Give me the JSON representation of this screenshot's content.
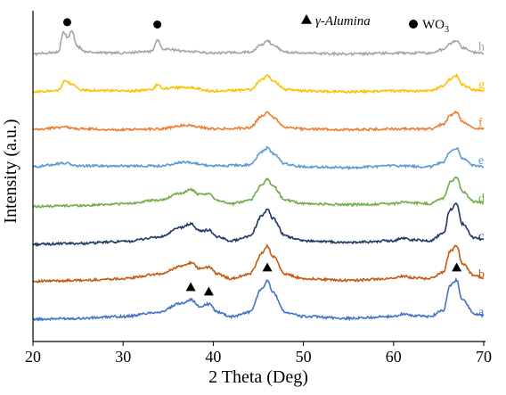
{
  "chart_data": {
    "type": "line",
    "title": "",
    "xlabel": "2 Theta (Deg)",
    "ylabel": "Intensity (a.u.)",
    "xlim": [
      20,
      70
    ],
    "xticks": [
      20,
      30,
      40,
      50,
      60,
      70
    ],
    "legend": {
      "position": "top-right",
      "items": [
        {
          "symbol": "triangle",
          "label": "γ-Alumina"
        },
        {
          "symbol": "circle",
          "label": "WO3"
        }
      ]
    },
    "series": [
      {
        "name": "a",
        "color": "#4472c4",
        "offset": 0,
        "points": [
          [
            20,
            2
          ],
          [
            25,
            3
          ],
          [
            30,
            5
          ],
          [
            34,
            10
          ],
          [
            36.5,
            20
          ],
          [
            37.5,
            24
          ],
          [
            38.5,
            16
          ],
          [
            39.5,
            19
          ],
          [
            40.5,
            10
          ],
          [
            42,
            5
          ],
          [
            44,
            10
          ],
          [
            45.5,
            38
          ],
          [
            46,
            46
          ],
          [
            46.6,
            32
          ],
          [
            48,
            10
          ],
          [
            50,
            5
          ],
          [
            55,
            3
          ],
          [
            60,
            5
          ],
          [
            61,
            8
          ],
          [
            62,
            6
          ],
          [
            64,
            5
          ],
          [
            65.5,
            12
          ],
          [
            66.3,
            40
          ],
          [
            67,
            46
          ],
          [
            67.6,
            24
          ],
          [
            69,
            8
          ],
          [
            70,
            6
          ]
        ]
      },
      {
        "name": "b",
        "color": "#c55a11",
        "offset": 1,
        "points": [
          [
            20,
            2
          ],
          [
            25,
            3
          ],
          [
            30,
            5
          ],
          [
            34,
            10
          ],
          [
            36.5,
            19
          ],
          [
            37.5,
            23
          ],
          [
            38.5,
            16
          ],
          [
            39.5,
            18
          ],
          [
            40.5,
            10
          ],
          [
            42,
            5
          ],
          [
            44,
            10
          ],
          [
            45.5,
            34
          ],
          [
            46,
            42
          ],
          [
            46.6,
            30
          ],
          [
            48,
            10
          ],
          [
            50,
            5
          ],
          [
            55,
            3
          ],
          [
            60,
            5
          ],
          [
            61,
            8
          ],
          [
            62,
            6
          ],
          [
            64,
            5
          ],
          [
            65.5,
            12
          ],
          [
            66.3,
            36
          ],
          [
            67,
            42
          ],
          [
            67.6,
            22
          ],
          [
            69,
            8
          ],
          [
            70,
            6
          ]
        ]
      },
      {
        "name": "c",
        "color": "#1f3864",
        "offset": 2,
        "points": [
          [
            20,
            1
          ],
          [
            25,
            2
          ],
          [
            30,
            4
          ],
          [
            34,
            9
          ],
          [
            36.5,
            20
          ],
          [
            37.5,
            24
          ],
          [
            38.5,
            16
          ],
          [
            39.5,
            17
          ],
          [
            40.5,
            9
          ],
          [
            42,
            5
          ],
          [
            44,
            10
          ],
          [
            45.5,
            34
          ],
          [
            46,
            40
          ],
          [
            46.6,
            30
          ],
          [
            48,
            10
          ],
          [
            50,
            5
          ],
          [
            55,
            3
          ],
          [
            60,
            5
          ],
          [
            61,
            8
          ],
          [
            62,
            6
          ],
          [
            64,
            5
          ],
          [
            65.5,
            13
          ],
          [
            66.3,
            40
          ],
          [
            67,
            46
          ],
          [
            67.6,
            24
          ],
          [
            69,
            8
          ],
          [
            70,
            6
          ]
        ]
      },
      {
        "name": "d",
        "color": "#70ad47",
        "offset": 3,
        "points": [
          [
            20,
            1
          ],
          [
            25,
            2
          ],
          [
            30,
            4
          ],
          [
            34,
            8
          ],
          [
            36.5,
            16
          ],
          [
            37.5,
            20
          ],
          [
            38.5,
            14
          ],
          [
            39.5,
            15
          ],
          [
            40.5,
            8
          ],
          [
            42,
            4
          ],
          [
            44,
            8
          ],
          [
            45.5,
            26
          ],
          [
            46,
            32
          ],
          [
            46.6,
            24
          ],
          [
            48,
            8
          ],
          [
            50,
            4
          ],
          [
            55,
            3
          ],
          [
            60,
            4
          ],
          [
            61,
            6
          ],
          [
            62,
            5
          ],
          [
            64,
            4
          ],
          [
            65.5,
            10
          ],
          [
            66.3,
            28
          ],
          [
            67,
            34
          ],
          [
            67.6,
            18
          ],
          [
            69,
            6
          ],
          [
            70,
            5
          ]
        ]
      },
      {
        "name": "e",
        "color": "#5b9bd5",
        "offset": 4,
        "points": [
          [
            20,
            3
          ],
          [
            23.5,
            7
          ],
          [
            25,
            4
          ],
          [
            30,
            4
          ],
          [
            34,
            4
          ],
          [
            37,
            8
          ],
          [
            40,
            4
          ],
          [
            44,
            5
          ],
          [
            45.5,
            20
          ],
          [
            46,
            24
          ],
          [
            46.6,
            18
          ],
          [
            48,
            6
          ],
          [
            50,
            3
          ],
          [
            55,
            2
          ],
          [
            60,
            4
          ],
          [
            64,
            3
          ],
          [
            65.5,
            8
          ],
          [
            66.3,
            20
          ],
          [
            67,
            24
          ],
          [
            67.6,
            12
          ],
          [
            69,
            4
          ],
          [
            70,
            3
          ]
        ]
      },
      {
        "name": "f",
        "color": "#ed7d31",
        "offset": 5,
        "points": [
          [
            20,
            2
          ],
          [
            23.5,
            5
          ],
          [
            25,
            3
          ],
          [
            30,
            2
          ],
          [
            34,
            3
          ],
          [
            37,
            7
          ],
          [
            40,
            3
          ],
          [
            44,
            4
          ],
          [
            45.5,
            18
          ],
          [
            46,
            22
          ],
          [
            46.6,
            16
          ],
          [
            48,
            5
          ],
          [
            50,
            3
          ],
          [
            55,
            2
          ],
          [
            60,
            3
          ],
          [
            64,
            3
          ],
          [
            65.5,
            8
          ],
          [
            66.3,
            18
          ],
          [
            67,
            22
          ],
          [
            67.6,
            11
          ],
          [
            69,
            4
          ],
          [
            70,
            3
          ]
        ]
      },
      {
        "name": "g",
        "color": "#ffc000",
        "offset": 6,
        "points": [
          [
            20,
            2
          ],
          [
            22.8,
            4
          ],
          [
            23.6,
            14
          ],
          [
            24.4,
            10
          ],
          [
            25.5,
            4
          ],
          [
            30,
            3
          ],
          [
            33.2,
            4
          ],
          [
            33.8,
            10
          ],
          [
            34.4,
            6
          ],
          [
            37,
            7
          ],
          [
            40,
            3
          ],
          [
            44,
            4
          ],
          [
            45.5,
            16
          ],
          [
            46,
            20
          ],
          [
            46.6,
            14
          ],
          [
            48,
            5
          ],
          [
            50,
            3
          ],
          [
            55,
            2
          ],
          [
            60,
            3
          ],
          [
            64,
            3
          ],
          [
            65.5,
            8
          ],
          [
            66.3,
            16
          ],
          [
            67,
            20
          ],
          [
            67.6,
            10
          ],
          [
            69,
            4
          ],
          [
            70,
            3
          ]
        ]
      },
      {
        "name": "h",
        "color": "#a5a5a5",
        "offset": 7,
        "points": [
          [
            20,
            2
          ],
          [
            22.8,
            4
          ],
          [
            23.4,
            26
          ],
          [
            23.9,
            20
          ],
          [
            24.3,
            28
          ],
          [
            24.9,
            10
          ],
          [
            26,
            4
          ],
          [
            30,
            3
          ],
          [
            33.2,
            5
          ],
          [
            33.8,
            18
          ],
          [
            34.4,
            8
          ],
          [
            37,
            5
          ],
          [
            40,
            3
          ],
          [
            44,
            4
          ],
          [
            45.5,
            13
          ],
          [
            46,
            17
          ],
          [
            46.6,
            12
          ],
          [
            48,
            4
          ],
          [
            50,
            3
          ],
          [
            55,
            2
          ],
          [
            60,
            3
          ],
          [
            64,
            3
          ],
          [
            65.5,
            7
          ],
          [
            66.3,
            14
          ],
          [
            67,
            17
          ],
          [
            67.6,
            9
          ],
          [
            69,
            4
          ],
          [
            70,
            3
          ]
        ]
      }
    ],
    "markers": [
      {
        "symbol": "triangle",
        "x": 37.5,
        "series": "a"
      },
      {
        "symbol": "triangle",
        "x": 39.5,
        "series": "a"
      },
      {
        "symbol": "triangle",
        "x": 46.0,
        "series": "a"
      },
      {
        "symbol": "triangle",
        "x": 67.0,
        "series": "a"
      },
      {
        "symbol": "circle",
        "x": 23.8,
        "series": "h"
      },
      {
        "symbol": "circle",
        "x": 33.8,
        "series": "h"
      }
    ]
  }
}
